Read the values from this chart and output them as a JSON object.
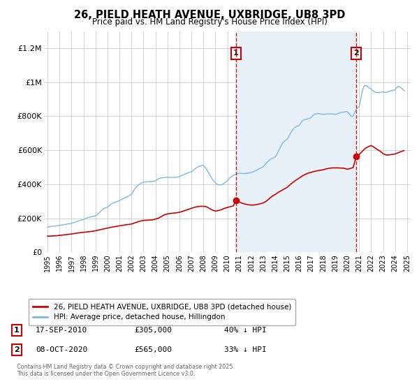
{
  "title": "26, PIELD HEATH AVENUE, UXBRIDGE, UB8 3PD",
  "subtitle": "Price paid vs. HM Land Registry's House Price Index (HPI)",
  "background_color": "#ffffff",
  "grid_color": "#cccccc",
  "hpi_color": "#7ab8e8",
  "hpi_fill_color": "#ddeeff",
  "price_color": "#cc0000",
  "shade_color": "#e8f0f8",
  "ylim": [
    0,
    1300000
  ],
  "yticks": [
    0,
    200000,
    400000,
    600000,
    800000,
    1000000,
    1200000
  ],
  "ytick_labels": [
    "£0",
    "£200K",
    "£400K",
    "£600K",
    "£800K",
    "£1M",
    "£1.2M"
  ],
  "sale1_date": 2010.72,
  "sale1_price": 305000,
  "sale2_date": 2020.77,
  "sale2_price": 565000,
  "legend_line1": "26, PIELD HEATH AVENUE, UXBRIDGE, UB8 3PD (detached house)",
  "legend_line2": "HPI: Average price, detached house, Hillingdon",
  "table_rows": [
    [
      "1",
      "17-SEP-2010",
      "£305,000",
      "40% ↓ HPI"
    ],
    [
      "2",
      "08-OCT-2020",
      "£565,000",
      "33% ↓ HPI"
    ]
  ],
  "footnote": "Contains HM Land Registry data © Crown copyright and database right 2025.\nThis data is licensed under the Open Government Licence v3.0.",
  "hpi_years": [
    1995.0,
    1995.083,
    1995.167,
    1995.25,
    1995.333,
    1995.417,
    1995.5,
    1995.583,
    1995.667,
    1995.75,
    1995.833,
    1995.917,
    1996.0,
    1996.083,
    1996.167,
    1996.25,
    1996.333,
    1996.417,
    1996.5,
    1996.583,
    1996.667,
    1996.75,
    1996.833,
    1996.917,
    1997.0,
    1997.083,
    1997.167,
    1997.25,
    1997.333,
    1997.417,
    1997.5,
    1997.583,
    1997.667,
    1997.75,
    1997.833,
    1997.917,
    1998.0,
    1998.083,
    1998.167,
    1998.25,
    1998.333,
    1998.417,
    1998.5,
    1998.583,
    1998.667,
    1998.75,
    1998.833,
    1998.917,
    1999.0,
    1999.083,
    1999.167,
    1999.25,
    1999.333,
    1999.417,
    1999.5,
    1999.583,
    1999.667,
    1999.75,
    1999.833,
    1999.917,
    2000.0,
    2000.083,
    2000.167,
    2000.25,
    2000.333,
    2000.417,
    2000.5,
    2000.583,
    2000.667,
    2000.75,
    2000.833,
    2000.917,
    2001.0,
    2001.083,
    2001.167,
    2001.25,
    2001.333,
    2001.417,
    2001.5,
    2001.583,
    2001.667,
    2001.75,
    2001.833,
    2001.917,
    2002.0,
    2002.083,
    2002.167,
    2002.25,
    2002.333,
    2002.417,
    2002.5,
    2002.583,
    2002.667,
    2002.75,
    2002.833,
    2002.917,
    2003.0,
    2003.083,
    2003.167,
    2003.25,
    2003.333,
    2003.417,
    2003.5,
    2003.583,
    2003.667,
    2003.75,
    2003.833,
    2003.917,
    2004.0,
    2004.083,
    2004.167,
    2004.25,
    2004.333,
    2004.417,
    2004.5,
    2004.583,
    2004.667,
    2004.75,
    2004.833,
    2004.917,
    2005.0,
    2005.083,
    2005.167,
    2005.25,
    2005.333,
    2005.417,
    2005.5,
    2005.583,
    2005.667,
    2005.75,
    2005.833,
    2005.917,
    2006.0,
    2006.083,
    2006.167,
    2006.25,
    2006.333,
    2006.417,
    2006.5,
    2006.583,
    2006.667,
    2006.75,
    2006.833,
    2006.917,
    2007.0,
    2007.083,
    2007.167,
    2007.25,
    2007.333,
    2007.417,
    2007.5,
    2007.583,
    2007.667,
    2007.75,
    2007.833,
    2007.917,
    2008.0,
    2008.083,
    2008.167,
    2008.25,
    2008.333,
    2008.417,
    2008.5,
    2008.583,
    2008.667,
    2008.75,
    2008.833,
    2008.917,
    2009.0,
    2009.083,
    2009.167,
    2009.25,
    2009.333,
    2009.417,
    2009.5,
    2009.583,
    2009.667,
    2009.75,
    2009.833,
    2009.917,
    2010.0,
    2010.083,
    2010.167,
    2010.25,
    2010.333,
    2010.417,
    2010.5,
    2010.583,
    2010.667,
    2010.75,
    2010.833,
    2010.917,
    2011.0,
    2011.083,
    2011.167,
    2011.25,
    2011.333,
    2011.417,
    2011.5,
    2011.583,
    2011.667,
    2011.75,
    2011.833,
    2011.917,
    2012.0,
    2012.083,
    2012.167,
    2012.25,
    2012.333,
    2012.417,
    2012.5,
    2012.583,
    2012.667,
    2012.75,
    2012.833,
    2012.917,
    2013.0,
    2013.083,
    2013.167,
    2013.25,
    2013.333,
    2013.417,
    2013.5,
    2013.583,
    2013.667,
    2013.75,
    2013.833,
    2013.917,
    2014.0,
    2014.083,
    2014.167,
    2014.25,
    2014.333,
    2014.417,
    2014.5,
    2014.583,
    2014.667,
    2014.75,
    2014.833,
    2014.917,
    2015.0,
    2015.083,
    2015.167,
    2015.25,
    2015.333,
    2015.417,
    2015.5,
    2015.583,
    2015.667,
    2015.75,
    2015.833,
    2015.917,
    2016.0,
    2016.083,
    2016.167,
    2016.25,
    2016.333,
    2016.417,
    2016.5,
    2016.583,
    2016.667,
    2016.75,
    2016.833,
    2016.917,
    2017.0,
    2017.083,
    2017.167,
    2017.25,
    2017.333,
    2017.417,
    2017.5,
    2017.583,
    2017.667,
    2017.75,
    2017.833,
    2017.917,
    2018.0,
    2018.083,
    2018.167,
    2018.25,
    2018.333,
    2018.417,
    2018.5,
    2018.583,
    2018.667,
    2018.75,
    2018.833,
    2018.917,
    2019.0,
    2019.083,
    2019.167,
    2019.25,
    2019.333,
    2019.417,
    2019.5,
    2019.583,
    2019.667,
    2019.75,
    2019.833,
    2019.917,
    2020.0,
    2020.083,
    2020.167,
    2020.25,
    2020.333,
    2020.417,
    2020.5,
    2020.583,
    2020.667,
    2020.75,
    2020.833,
    2020.917,
    2021.0,
    2021.083,
    2021.167,
    2021.25,
    2021.333,
    2021.417,
    2021.5,
    2021.583,
    2021.667,
    2021.75,
    2021.833,
    2021.917,
    2022.0,
    2022.083,
    2022.167,
    2022.25,
    2022.333,
    2022.417,
    2022.5,
    2022.583,
    2022.667,
    2022.75,
    2022.833,
    2022.917,
    2023.0,
    2023.083,
    2023.167,
    2023.25,
    2023.333,
    2023.417,
    2023.5,
    2023.583,
    2023.667,
    2023.75,
    2023.833,
    2023.917,
    2024.0,
    2024.083,
    2024.167,
    2024.25,
    2024.333,
    2024.417,
    2024.5,
    2024.583,
    2024.667,
    2024.75
  ],
  "hpi_values": [
    148000,
    149000,
    150000,
    151000,
    152000,
    152500,
    153000,
    153500,
    154000,
    155000,
    156000,
    157000,
    158000,
    159000,
    160000,
    161000,
    162000,
    163000,
    164000,
    165000,
    166000,
    167000,
    168000,
    169000,
    170000,
    172000,
    174000,
    176000,
    178000,
    180000,
    182000,
    184000,
    186000,
    188000,
    190000,
    191000,
    192000,
    195000,
    198000,
    201000,
    203000,
    205000,
    207000,
    208000,
    209000,
    210000,
    211000,
    212000,
    214000,
    218000,
    222000,
    228000,
    234000,
    240000,
    246000,
    252000,
    256000,
    258000,
    260000,
    262000,
    265000,
    270000,
    275000,
    280000,
    285000,
    288000,
    291000,
    293000,
    295000,
    297000,
    299000,
    301000,
    304000,
    307000,
    310000,
    313000,
    316000,
    319000,
    322000,
    325000,
    328000,
    331000,
    334000,
    337000,
    340000,
    350000,
    360000,
    370000,
    378000,
    384000,
    390000,
    395000,
    399000,
    403000,
    406000,
    409000,
    412000,
    413000,
    414000,
    413000,
    414000,
    415000,
    416000,
    415000,
    415000,
    416000,
    417000,
    418000,
    420000,
    424000,
    428000,
    432000,
    434000,
    436000,
    438000,
    438000,
    438000,
    439000,
    440000,
    440000,
    441000,
    441000,
    441000,
    441000,
    440000,
    440000,
    440000,
    440000,
    440000,
    441000,
    442000,
    443000,
    445000,
    448000,
    451000,
    453000,
    455000,
    458000,
    461000,
    463000,
    465000,
    467000,
    469000,
    471000,
    473000,
    478000,
    483000,
    488000,
    492000,
    496000,
    500000,
    503000,
    505000,
    507000,
    509000,
    510000,
    511000,
    505000,
    498000,
    490000,
    480000,
    470000,
    460000,
    450000,
    440000,
    430000,
    422000,
    415000,
    408000,
    403000,
    399000,
    397000,
    396000,
    396000,
    397000,
    399000,
    402000,
    406000,
    410000,
    415000,
    420000,
    427000,
    434000,
    440000,
    445000,
    449000,
    452000,
    455000,
    457000,
    459000,
    461000,
    463000,
    465000,
    465000,
    464000,
    463000,
    463000,
    463000,
    463000,
    464000,
    465000,
    466000,
    467000,
    468000,
    469000,
    471000,
    473000,
    476000,
    479000,
    482000,
    485000,
    488000,
    491000,
    494000,
    497000,
    500000,
    503000,
    510000,
    517000,
    524000,
    530000,
    535000,
    540000,
    545000,
    549000,
    552000,
    555000,
    558000,
    561000,
    570000,
    580000,
    592000,
    604000,
    616000,
    628000,
    638000,
    646000,
    652000,
    657000,
    661000,
    665000,
    675000,
    685000,
    697000,
    708000,
    716000,
    724000,
    730000,
    735000,
    739000,
    742000,
    744000,
    746000,
    755000,
    764000,
    771000,
    776000,
    779000,
    781000,
    783000,
    784000,
    786000,
    788000,
    790000,
    792000,
    800000,
    806000,
    810000,
    813000,
    815000,
    816000,
    816000,
    815000,
    814000,
    813000,
    812000,
    811000,
    811000,
    812000,
    813000,
    814000,
    814000,
    814000,
    814000,
    814000,
    814000,
    813000,
    812000,
    811000,
    812000,
    814000,
    816000,
    818000,
    820000,
    822000,
    823000,
    824000,
    825000,
    826000,
    827000,
    828000,
    822000,
    815000,
    808000,
    801000,
    798000,
    800000,
    815000,
    828000,
    840000,
    848000,
    852000,
    856000,
    880000,
    912000,
    942000,
    964000,
    978000,
    982000,
    980000,
    976000,
    972000,
    968000,
    964000,
    960000,
    955000,
    950000,
    946000,
    942000,
    940000,
    939000,
    939000,
    939000,
    940000,
    941000,
    942000,
    943000,
    942000,
    941000,
    941000,
    942000,
    944000,
    946000,
    948000,
    950000,
    952000,
    953000,
    954000,
    955000,
    963000,
    971000,
    975000,
    975000,
    972000,
    968000,
    963000,
    957000,
    950000
  ],
  "price_years": [
    1995.0,
    1995.25,
    1995.5,
    1995.75,
    1996.0,
    1996.25,
    1996.5,
    1996.75,
    1997.0,
    1997.25,
    1997.5,
    1997.75,
    1998.0,
    1998.25,
    1998.5,
    1998.75,
    1999.0,
    1999.25,
    1999.5,
    1999.75,
    2000.0,
    2000.25,
    2000.5,
    2000.75,
    2001.0,
    2001.25,
    2001.5,
    2001.75,
    2002.0,
    2002.25,
    2002.5,
    2002.75,
    2003.0,
    2003.25,
    2003.5,
    2003.75,
    2004.0,
    2004.25,
    2004.5,
    2004.75,
    2005.0,
    2005.25,
    2005.5,
    2005.75,
    2006.0,
    2006.25,
    2006.5,
    2006.75,
    2007.0,
    2007.25,
    2007.5,
    2007.75,
    2008.0,
    2008.25,
    2008.5,
    2008.75,
    2009.0,
    2009.25,
    2009.5,
    2009.75,
    2010.0,
    2010.25,
    2010.5,
    2010.72,
    2011.0,
    2011.25,
    2011.5,
    2011.75,
    2012.0,
    2012.25,
    2012.5,
    2012.75,
    2013.0,
    2013.25,
    2013.5,
    2013.75,
    2014.0,
    2014.25,
    2014.5,
    2014.75,
    2015.0,
    2015.25,
    2015.5,
    2015.75,
    2016.0,
    2016.25,
    2016.5,
    2016.75,
    2017.0,
    2017.25,
    2017.5,
    2017.75,
    2018.0,
    2018.25,
    2018.5,
    2018.75,
    2019.0,
    2019.25,
    2019.5,
    2019.75,
    2020.0,
    2020.25,
    2020.5,
    2020.77,
    2021.0,
    2021.25,
    2021.5,
    2021.75,
    2022.0,
    2022.25,
    2022.5,
    2022.75,
    2023.0,
    2023.25,
    2023.5,
    2023.75,
    2024.0,
    2024.25,
    2024.5,
    2024.75
  ],
  "price_values": [
    94000,
    95000,
    96000,
    97000,
    99000,
    101000,
    103000,
    105000,
    107000,
    110000,
    113000,
    115000,
    117000,
    119000,
    121000,
    123000,
    126000,
    130000,
    134000,
    138000,
    142000,
    146000,
    149000,
    152000,
    155000,
    158000,
    161000,
    163000,
    166000,
    172000,
    178000,
    183000,
    187000,
    188000,
    189000,
    190000,
    195000,
    200000,
    210000,
    220000,
    225000,
    228000,
    230000,
    232000,
    235000,
    240000,
    246000,
    252000,
    258000,
    264000,
    268000,
    270000,
    270000,
    268000,
    258000,
    248000,
    242000,
    245000,
    250000,
    258000,
    263000,
    268000,
    272000,
    305000,
    295000,
    288000,
    283000,
    279000,
    277000,
    278000,
    281000,
    285000,
    290000,
    300000,
    315000,
    330000,
    340000,
    352000,
    362000,
    372000,
    382000,
    398000,
    412000,
    425000,
    436000,
    448000,
    458000,
    465000,
    470000,
    475000,
    479000,
    482000,
    485000,
    490000,
    494000,
    496000,
    496000,
    496000,
    495000,
    494000,
    488000,
    492000,
    498000,
    565000,
    575000,
    592000,
    610000,
    620000,
    628000,
    618000,
    605000,
    595000,
    580000,
    572000,
    573000,
    575000,
    578000,
    585000,
    592000,
    598000
  ]
}
